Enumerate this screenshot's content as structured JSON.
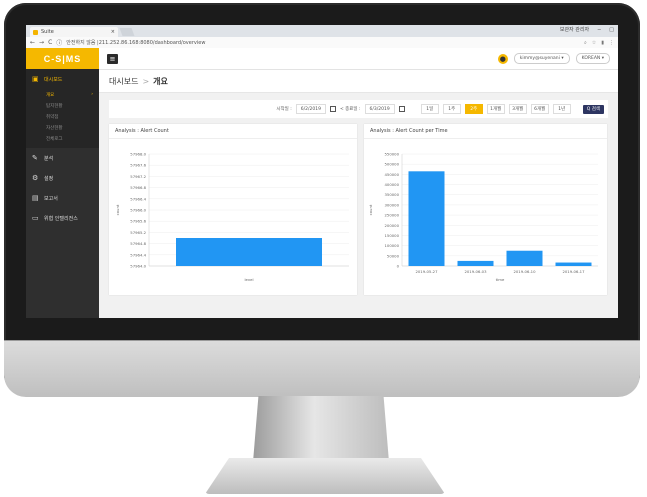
{
  "browser": {
    "tab_title": "Suite",
    "tab_close": "×",
    "url_prefix": "안전하지 않음 | ",
    "url": "211.252.86.168:8080/dashboard/overview",
    "window_label": "보관자 관리자",
    "controls": [
      "−",
      "□"
    ],
    "nav": [
      "←",
      "→",
      "C",
      "ⓘ"
    ]
  },
  "app": {
    "logo": "C-S|MS",
    "user_email": "kimmy@suyenani",
    "language": "KOREAN"
  },
  "sidebar": {
    "items": [
      {
        "label": "대시보드",
        "icon": "dashboard-icon",
        "active": true
      },
      {
        "label": "분석",
        "icon": "edit-icon"
      },
      {
        "label": "설정",
        "icon": "gear-icon"
      },
      {
        "label": "보고서",
        "icon": "report-icon"
      },
      {
        "label": "위협 인텔리전스",
        "icon": "monitor-icon"
      }
    ],
    "submenu": [
      "개요",
      "탐지현황",
      "취약점",
      "자산현황",
      "전체로그"
    ]
  },
  "breadcrumb": {
    "parent": "대시보드",
    "sep": ">",
    "current": "개요"
  },
  "filter": {
    "start_label": "시작일 :",
    "start_value": "6/2/2019",
    "end_label": "< 종료일 :",
    "end_value": "6/3/2019",
    "ranges": [
      "1일",
      "1주",
      "2주",
      "1개월",
      "3개월",
      "6개월",
      "1년"
    ],
    "selected_index": 2,
    "search_label": "Q 검색"
  },
  "chart_data": [
    {
      "type": "bar",
      "title": "Analysis : Alert Count",
      "xlabel": "level",
      "ylabel": "count",
      "categories": [
        ""
      ],
      "values": [
        57965.0
      ],
      "yticks": [
        "57968.0",
        "57967.6",
        "57967.2",
        "57966.8",
        "57966.4",
        "57966.0",
        "57965.6",
        "57965.2",
        "57964.8",
        "57964.4",
        "57964.0"
      ],
      "ylim": [
        57964.0,
        57968.0
      ],
      "color": "#2196f3"
    },
    {
      "type": "bar",
      "title": "Analysis : Alert Count per Time",
      "xlabel": "time",
      "ylabel": "count",
      "categories": [
        "2019-05-27",
        "2019-06-03",
        "2019-06-10",
        "2019-06-17"
      ],
      "values": [
        465000,
        25000,
        75000,
        17000
      ],
      "yticks": [
        "550000",
        "500000",
        "450000",
        "400000",
        "350000",
        "300000",
        "250000",
        "200000",
        "150000",
        "100000",
        "50000",
        "0"
      ],
      "ylim": [
        0,
        550000
      ],
      "color": "#2196f3"
    }
  ]
}
